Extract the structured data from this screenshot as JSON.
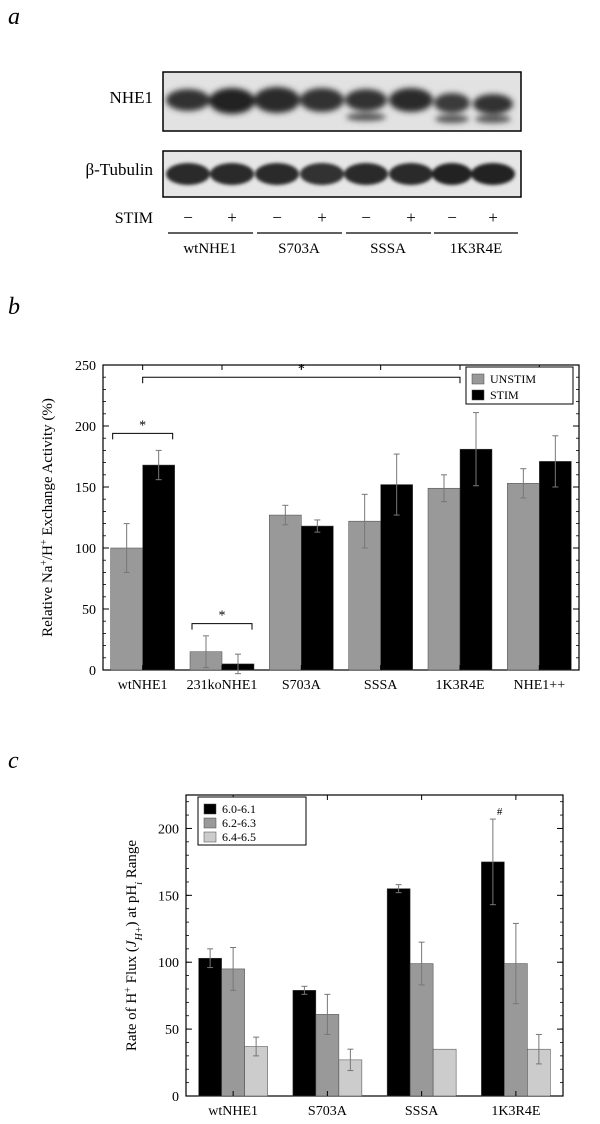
{
  "panel_labels": {
    "a": "a",
    "b": "b",
    "c": "c"
  },
  "blot": {
    "row_labels": [
      "NHE1",
      "β-Tubulin"
    ],
    "stim_label": "STIM",
    "stim_signs": [
      "−",
      "+",
      "−",
      "+",
      "−",
      "+",
      "−",
      "+"
    ],
    "groups": [
      "wtNHE1",
      "S703A",
      "SSSA",
      "1K3R4E"
    ]
  },
  "chart_data": [
    {
      "type": "bar",
      "panel": "b",
      "title": "",
      "categories": [
        "wtNHE1",
        "231koNHE1",
        "S703A",
        "SSSA",
        "1K3R4E",
        "NHE1++"
      ],
      "series": [
        {
          "name": "UNSTIM",
          "color": "#999999",
          "values": [
            100,
            15,
            127,
            122,
            149,
            153
          ],
          "errors": [
            20,
            13,
            8,
            22,
            11,
            12
          ]
        },
        {
          "name": "STIM",
          "color": "#000000",
          "values": [
            168,
            5,
            118,
            152,
            181,
            171
          ],
          "errors": [
            12,
            8,
            5,
            25,
            30,
            21
          ]
        }
      ],
      "ylabel_parts": [
        "Relative Na",
        "+",
        "/H",
        "+",
        " Exchange Activity (%)"
      ],
      "ylim": [
        0,
        250
      ],
      "yticks": [
        0,
        50,
        100,
        150,
        200,
        250
      ],
      "annotations": [
        {
          "text": "*",
          "from_category": 0,
          "to_category": 4,
          "level": 240
        },
        {
          "text": "*",
          "from_category": 0,
          "to_category": 0,
          "level": 194
        },
        {
          "text": "*",
          "from_category": 1,
          "to_category": 1,
          "level": 38
        }
      ],
      "legend_position": "top-right"
    },
    {
      "type": "bar",
      "panel": "c",
      "title": "",
      "categories": [
        "wtNHE1",
        "S703A",
        "SSSA",
        "1K3R4E"
      ],
      "series": [
        {
          "name": "6.0-6.1",
          "color": "#000000",
          "values": [
            103,
            79,
            155,
            175
          ],
          "errors": [
            7,
            3,
            3,
            32
          ]
        },
        {
          "name": "6.2-6.3",
          "color": "#999999",
          "values": [
            95,
            61,
            99,
            99
          ],
          "errors": [
            16,
            15,
            16,
            30
          ]
        },
        {
          "name": "6.4-6.5",
          "color": "#cccccc",
          "values": [
            37,
            27,
            35,
            35
          ],
          "errors": [
            7,
            8,
            0,
            11
          ]
        }
      ],
      "ylabel_parts": [
        "Rate of H",
        "+",
        " Flux (",
        "J",
        "H+",
        ") at pH",
        "i",
        " Range"
      ],
      "ylim": [
        0,
        225
      ],
      "yticks": [
        0,
        50,
        100,
        150,
        200
      ],
      "annotations": [
        {
          "text": "#",
          "category": 3,
          "series": 0,
          "value": 210
        }
      ],
      "legend_position": "top-left"
    }
  ]
}
